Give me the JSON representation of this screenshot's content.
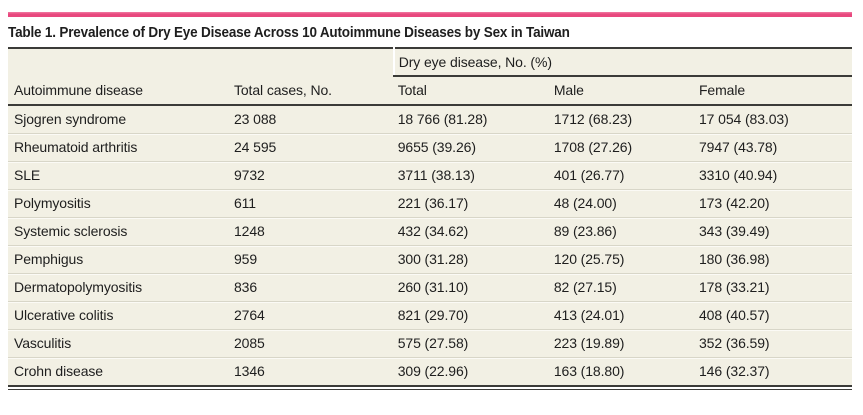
{
  "colors": {
    "accent": "#e8487e",
    "table_background": "#f2f0e4",
    "rule": "#3b3b38",
    "text": "#1e1e1e"
  },
  "title": "Table 1. Prevalence of Dry Eye Disease Across 10 Autoimmune Diseases by Sex in Taiwan",
  "table": {
    "group_header": "Dry eye disease, No. (%)",
    "column_headers": [
      "Autoimmune disease",
      "Total cases, No.",
      "Total",
      "Male",
      "Female"
    ],
    "column_keys": [
      "autoimmune-disease",
      "total-cases",
      "ded-total",
      "ded-male",
      "ded-female"
    ],
    "rows": [
      {
        "cells": [
          "Sjogren syndrome",
          "23 088",
          "18 766 (81.28)",
          "1712 (68.23)",
          "17 054 (83.03)"
        ]
      },
      {
        "cells": [
          "Rheumatoid arthritis",
          "24 595",
          "9655 (39.26)",
          "1708 (27.26)",
          "7947 (43.78)"
        ]
      },
      {
        "cells": [
          "SLE",
          "9732",
          "3711 (38.13)",
          "401 (26.77)",
          "3310 (40.94)"
        ]
      },
      {
        "cells": [
          "Polymyositis",
          "611",
          "221 (36.17)",
          "48 (24.00)",
          "173 (42.20)"
        ]
      },
      {
        "cells": [
          "Systemic sclerosis",
          "1248",
          "432 (34.62)",
          "89 (23.86)",
          "343 (39.49)"
        ]
      },
      {
        "cells": [
          "Pemphigus",
          "959",
          "300 (31.28)",
          "120 (25.75)",
          "180 (36.98)"
        ]
      },
      {
        "cells": [
          "Dermatopolymyositis",
          "836",
          "260 (31.10)",
          "82 (27.15)",
          "178 (33.21)"
        ]
      },
      {
        "cells": [
          "Ulcerative colitis",
          "2764",
          "821 (29.70)",
          "413 (24.01)",
          "408 (40.57)"
        ]
      },
      {
        "cells": [
          "Vasculitis",
          "2085",
          "575 (27.58)",
          "223 (19.89)",
          "352 (36.59)"
        ]
      },
      {
        "cells": [
          "Crohn disease",
          "1346",
          "309 (22.96)",
          "163 (18.80)",
          "146 (32.37)"
        ]
      }
    ]
  }
}
